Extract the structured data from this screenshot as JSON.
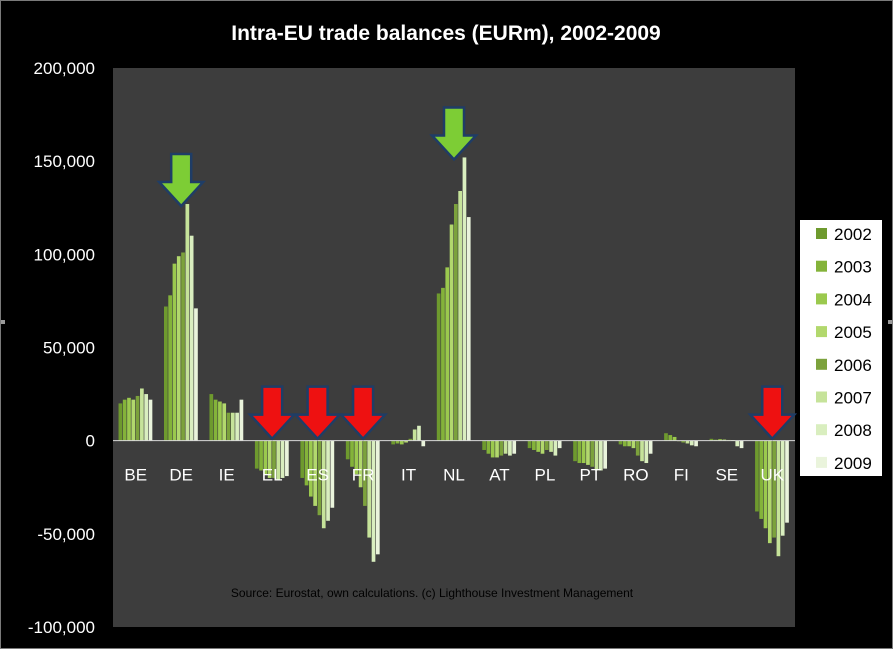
{
  "chart_data": {
    "type": "bar",
    "title": "Intra-EU trade balances (EURm), 2002-2009",
    "note": "Source: Eurostat, own calculations. (c) Lighthouse Investment Management",
    "categories": [
      "BE",
      "DE",
      "IE",
      "EL",
      "ES",
      "FR",
      "IT",
      "NL",
      "AT",
      "PL",
      "PT",
      "RO",
      "FI",
      "SE",
      "UK"
    ],
    "ylim": [
      -100000,
      200000
    ],
    "yticks": [
      -100000,
      -50000,
      0,
      50000,
      100000,
      150000,
      200000
    ],
    "ytick_labels": [
      "-100,000",
      "-50,000",
      "0",
      "50,000",
      "100,000",
      "150,000",
      "200,000"
    ],
    "grid": false,
    "legend_position": "right",
    "series": [
      {
        "name": "2002",
        "color": "#6e9a2e",
        "values": [
          20000,
          72000,
          25000,
          -15000,
          -20000,
          -10000,
          -2000,
          79000,
          -5000,
          -4000,
          -11000,
          -2000,
          4000,
          1000,
          -38000
        ]
      },
      {
        "name": "2003",
        "color": "#84b33a",
        "values": [
          22000,
          78000,
          22000,
          -16000,
          -24000,
          -14000,
          -1500,
          82000,
          -7000,
          -5000,
          -12000,
          -3000,
          3000,
          500,
          -42000
        ]
      },
      {
        "name": "2004",
        "color": "#9bc94e",
        "values": [
          23000,
          95000,
          21000,
          -18000,
          -30000,
          -18000,
          -2000,
          93000,
          -9000,
          -6000,
          -12000,
          -3000,
          2000,
          800,
          -47000
        ]
      },
      {
        "name": "2005",
        "color": "#b2d86d",
        "values": [
          22000,
          99000,
          20000,
          -20000,
          -35000,
          -25000,
          -1000,
          116000,
          -9000,
          -7000,
          -13000,
          -4000,
          0,
          600,
          -55000
        ]
      },
      {
        "name": "2006",
        "color": "#7ca23c",
        "values": [
          24000,
          101000,
          15000,
          -20000,
          -40000,
          -35000,
          1000,
          127000,
          -8000,
          -5000,
          -14000,
          -8000,
          -1000,
          400,
          -52000
        ]
      },
      {
        "name": "2007",
        "color": "#c6e39a",
        "values": [
          28000,
          127000,
          15000,
          -21000,
          -47000,
          -52000,
          6000,
          134000,
          -7000,
          -6000,
          -16000,
          -11000,
          -1500,
          300,
          -62000
        ]
      },
      {
        "name": "2008",
        "color": "#d9eebf",
        "values": [
          25000,
          110000,
          15000,
          -20000,
          -43000,
          -65000,
          8000,
          152000,
          -8000,
          -8000,
          -16000,
          -12000,
          -2500,
          -3000,
          -51000
        ]
      },
      {
        "name": "2009",
        "color": "#eaf4dc",
        "values": [
          22000,
          71000,
          22000,
          -19000,
          -36000,
          -61000,
          -3000,
          120000,
          -7000,
          -4000,
          -15000,
          -7000,
          -3000,
          -4000,
          -44000
        ]
      }
    ],
    "annotations": [
      {
        "category": "DE",
        "direction": "down",
        "color": "#7dcd35"
      },
      {
        "category": "NL",
        "direction": "down",
        "color": "#7dcd35"
      },
      {
        "category": "EL",
        "direction": "down",
        "color": "#ee1111"
      },
      {
        "category": "ES",
        "direction": "down",
        "color": "#ee1111"
      },
      {
        "category": "FR",
        "direction": "down",
        "color": "#ee1111"
      },
      {
        "category": "UK",
        "direction": "down",
        "color": "#ee1111"
      }
    ],
    "colors": {
      "background": "#000000",
      "plot_area": "#3d3d3d",
      "text": "#ffffff",
      "legend_text": "#000000",
      "arrow_outline": "#1f3d66"
    }
  }
}
